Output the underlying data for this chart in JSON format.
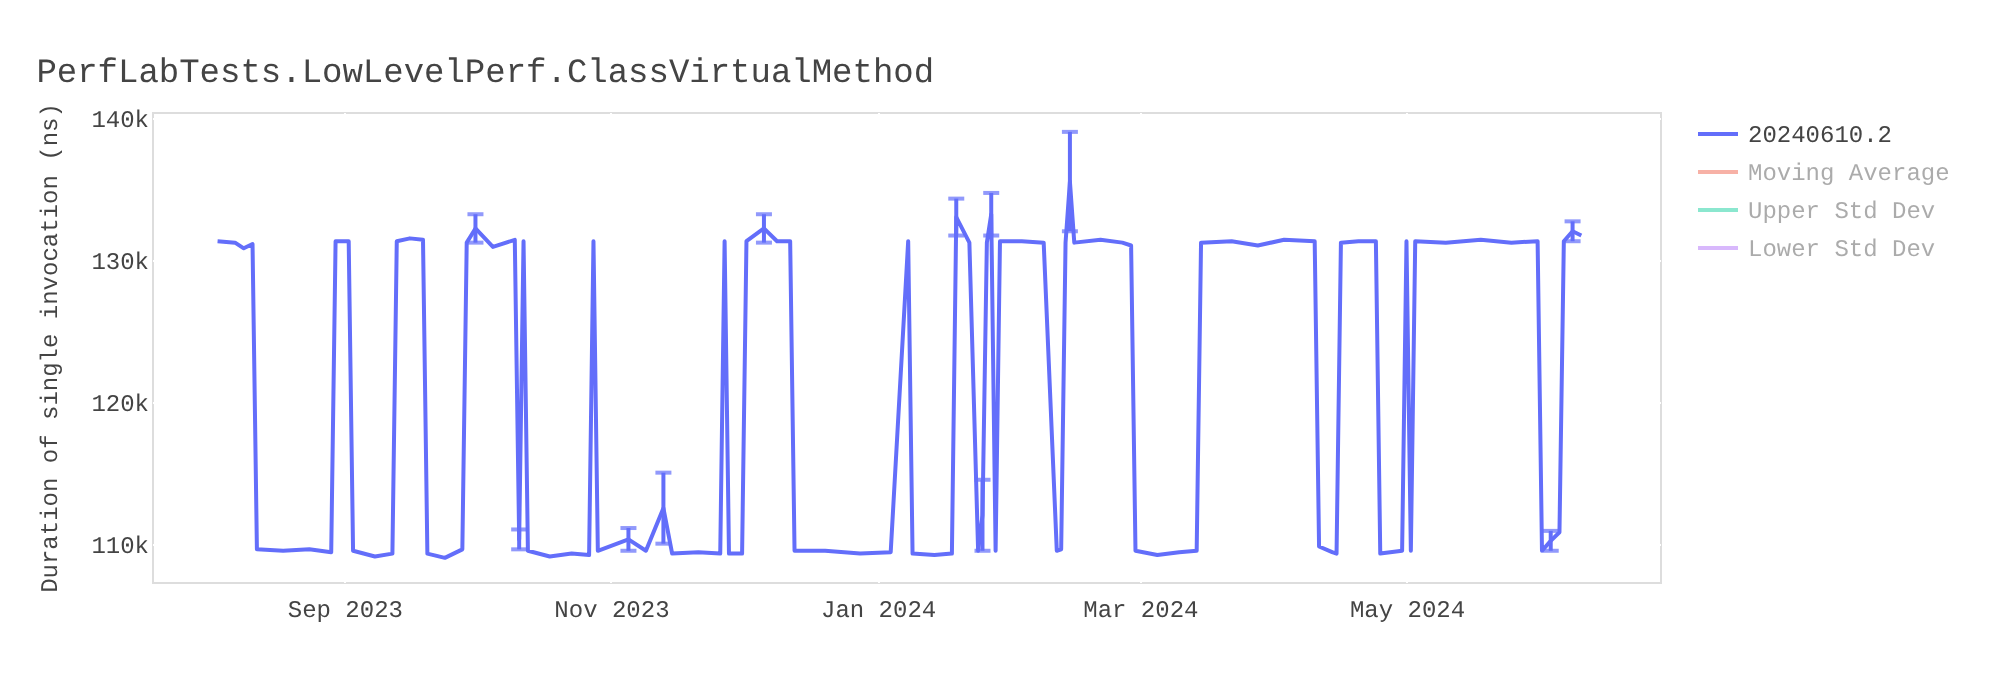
{
  "chart_data": {
    "type": "line",
    "title": "PerfLabTests.LowLevelPerf.ClassVirtualMethod",
    "ylabel": "Duration of single invocation (ns)",
    "x": [
      "2023-08-03",
      "2023-08-07",
      "2023-08-09",
      "2023-08-11",
      "2023-08-12",
      "2023-08-18",
      "2023-08-24",
      "2023-08-29",
      "2023-08-30",
      "2023-09-02",
      "2023-09-03",
      "2023-09-08",
      "2023-09-12",
      "2023-09-13",
      "2023-09-16",
      "2023-09-19",
      "2023-09-20",
      "2023-09-24",
      "2023-09-28",
      "2023-09-29",
      "2023-10-01",
      "2023-10-05",
      "2023-10-10",
      "2023-10-11",
      "2023-10-12",
      "2023-10-13",
      "2023-10-18",
      "2023-10-23",
      "2023-10-27",
      "2023-10-28",
      "2023-10-29",
      "2023-11-05",
      "2023-11-09",
      "2023-11-13",
      "2023-11-15",
      "2023-11-21",
      "2023-11-26",
      "2023-11-27",
      "2023-11-28",
      "2023-12-01",
      "2023-12-02",
      "2023-12-06",
      "2023-12-09",
      "2023-12-12",
      "2023-12-13",
      "2023-12-20",
      "2023-12-28",
      "2024-01-04",
      "2024-01-08",
      "2024-01-09",
      "2024-01-14",
      "2024-01-18",
      "2024-01-19",
      "2024-01-22",
      "2024-01-24",
      "2024-01-25",
      "2024-01-26",
      "2024-01-27",
      "2024-01-28",
      "2024-01-29",
      "2024-02-03",
      "2024-02-08",
      "2024-02-11",
      "2024-02-12",
      "2024-02-13",
      "2024-02-14",
      "2024-02-15",
      "2024-02-21",
      "2024-02-26",
      "2024-02-28",
      "2024-02-29",
      "2024-03-05",
      "2024-03-10",
      "2024-03-14",
      "2024-03-15",
      "2024-03-22",
      "2024-03-28",
      "2024-04-03",
      "2024-04-10",
      "2024-04-11",
      "2024-04-14",
      "2024-04-15",
      "2024-04-16",
      "2024-04-20",
      "2024-04-24",
      "2024-04-25",
      "2024-04-30",
      "2024-05-01",
      "2024-05-02",
      "2024-05-03",
      "2024-05-10",
      "2024-05-18",
      "2024-05-25",
      "2024-05-31",
      "2024-06-01",
      "2024-06-03",
      "2024-06-05",
      "2024-06-06",
      "2024-06-08",
      "2024-06-10"
    ],
    "series": [
      {
        "name": "20240610.2",
        "color": "#636efa",
        "values": [
          131300,
          131200,
          130800,
          131100,
          109600,
          109500,
          109600,
          109400,
          131300,
          131300,
          109500,
          109100,
          109300,
          131300,
          131500,
          131400,
          109300,
          109000,
          109600,
          131200,
          132200,
          130900,
          131400,
          110300,
          131300,
          109500,
          109100,
          109300,
          109200,
          131300,
          109500,
          110300,
          109500,
          112500,
          109300,
          109400,
          109300,
          131300,
          109300,
          109300,
          131300,
          132200,
          131300,
          131300,
          109500,
          109500,
          109300,
          109400,
          131300,
          109300,
          109200,
          109300,
          133000,
          131200,
          109500,
          112000,
          131200,
          133200,
          109500,
          131300,
          131300,
          131200,
          109500,
          109600,
          131200,
          135500,
          131200,
          131400,
          131200,
          131000,
          109500,
          109200,
          109400,
          109500,
          131200,
          131300,
          131000,
          131400,
          131300,
          109800,
          109400,
          109300,
          131200,
          131300,
          131300,
          109300,
          109500,
          131300,
          109500,
          131300,
          131200,
          131400,
          131200,
          131300,
          109500,
          110200,
          110800,
          131300,
          132000,
          131700
        ],
        "errors": [
          null,
          null,
          null,
          null,
          null,
          null,
          null,
          null,
          null,
          null,
          null,
          null,
          null,
          null,
          null,
          null,
          null,
          null,
          null,
          null,
          1000,
          null,
          null,
          700,
          null,
          null,
          null,
          null,
          null,
          null,
          null,
          800,
          null,
          2500,
          null,
          null,
          null,
          null,
          null,
          null,
          null,
          1000,
          null,
          null,
          null,
          null,
          null,
          null,
          null,
          null,
          null,
          null,
          1300,
          null,
          null,
          2500,
          null,
          1500,
          null,
          null,
          null,
          null,
          null,
          null,
          null,
          3500,
          null,
          null,
          null,
          null,
          null,
          null,
          null,
          null,
          null,
          null,
          null,
          null,
          null,
          null,
          null,
          null,
          null,
          null,
          null,
          null,
          null,
          null,
          null,
          null,
          null,
          null,
          null,
          null,
          null,
          700,
          null,
          null,
          700,
          null
        ]
      },
      {
        "name": "Moving Average",
        "color": "#ef553b",
        "values": [
          null,
          null,
          null,
          null,
          null,
          null,
          null,
          null,
          null,
          null,
          null,
          null,
          null,
          null,
          null,
          null,
          null,
          null,
          null,
          null,
          null,
          null,
          null,
          null,
          null,
          null,
          null,
          null,
          null,
          null,
          null,
          null,
          null,
          null,
          null,
          null,
          null,
          null,
          null,
          null,
          null,
          null,
          null,
          null,
          null,
          null,
          null,
          null,
          null,
          null,
          null,
          null,
          null,
          null,
          null,
          null,
          null,
          null,
          null,
          null,
          null,
          null,
          null,
          null,
          null,
          null,
          null,
          null,
          null,
          null,
          null,
          null,
          null,
          null,
          null,
          null,
          null,
          null,
          null,
          null,
          null,
          null,
          null,
          null,
          null,
          null,
          null,
          null,
          null,
          null,
          null,
          null,
          null,
          null,
          null,
          null,
          null,
          null,
          null,
          null
        ]
      },
      {
        "name": "Upper Std Dev",
        "color": "#00cc96",
        "values": [
          null,
          null,
          null,
          null,
          null,
          null,
          null,
          null,
          null,
          null,
          null,
          null,
          null,
          null,
          null,
          null,
          null,
          null,
          null,
          null,
          null,
          null,
          null,
          null,
          null,
          null,
          null,
          null,
          null,
          null,
          null,
          null,
          null,
          null,
          null,
          null,
          null,
          null,
          null,
          null,
          null,
          null,
          null,
          null,
          null,
          null,
          null,
          null,
          null,
          null,
          null,
          null,
          null,
          null,
          null,
          null,
          null,
          null,
          null,
          null,
          null,
          null,
          null,
          null,
          null,
          null,
          null,
          null,
          null,
          null,
          null,
          null,
          null,
          null,
          null,
          null,
          null,
          null,
          null,
          null,
          null,
          null,
          null,
          null,
          null,
          null,
          null,
          null,
          null,
          null,
          null,
          null,
          null,
          null,
          null,
          null,
          null,
          null,
          null,
          null
        ]
      },
      {
        "name": "Lower Std Dev",
        "color": "#ab63fa",
        "values": [
          null,
          null,
          null,
          null,
          null,
          null,
          null,
          null,
          null,
          null,
          null,
          null,
          null,
          null,
          null,
          null,
          null,
          null,
          null,
          null,
          null,
          null,
          null,
          null,
          null,
          null,
          null,
          null,
          null,
          null,
          null,
          null,
          null,
          null,
          null,
          null,
          null,
          null,
          null,
          null,
          null,
          null,
          null,
          null,
          null,
          null,
          null,
          null,
          null,
          null,
          null,
          null,
          null,
          null,
          null,
          null,
          null,
          null,
          null,
          null,
          null,
          null,
          null,
          null,
          null,
          null,
          null,
          null,
          null,
          null,
          null,
          null,
          null,
          null,
          null,
          null,
          null,
          null,
          null,
          null,
          null,
          null,
          null,
          null,
          null,
          null,
          null,
          null,
          null,
          null,
          null,
          null,
          null,
          null,
          null,
          null,
          null,
          null,
          null,
          null
        ]
      }
    ],
    "xlim": [
      "2023-07-19",
      "2024-06-28"
    ],
    "xticks": [
      {
        "value": "2023-09-01",
        "label": "Sep 2023"
      },
      {
        "value": "2023-11-01",
        "label": "Nov 2023"
      },
      {
        "value": "2024-01-01",
        "label": "Jan 2024"
      },
      {
        "value": "2024-03-01",
        "label": "Mar 2024"
      },
      {
        "value": "2024-05-01",
        "label": "May 2024"
      }
    ],
    "ylim": [
      107300,
      140400
    ],
    "yticks": [
      {
        "value": 110000,
        "label": "110k"
      },
      {
        "value": 120000,
        "label": "120k"
      },
      {
        "value": 130000,
        "label": "130k"
      },
      {
        "value": 140000,
        "label": "140k"
      }
    ],
    "grid": true,
    "legend": "top right"
  }
}
